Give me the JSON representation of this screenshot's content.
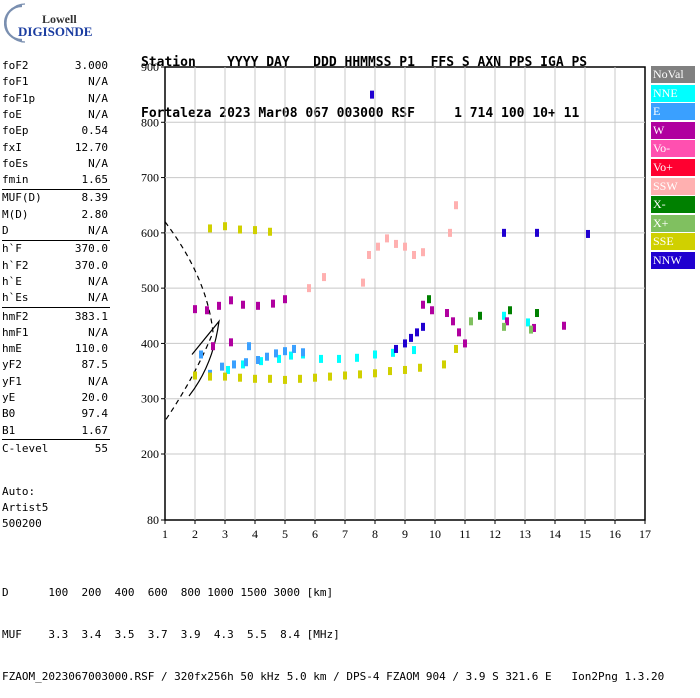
{
  "logo": {
    "brand_top": "Lowell",
    "brand_bottom": "DIGISONDE"
  },
  "header": {
    "line1": "Station    YYYY DAY   DDD HHMMSS P1  FFS S AXN PPS IGA PS",
    "line2": "Fortaleza 2023 Mar08 067 003000 RSF     1 714 100 10+ 11"
  },
  "params": [
    {
      "name": "foF2",
      "value": "3.000"
    },
    {
      "name": "foF1",
      "value": "N/A"
    },
    {
      "name": "foF1p",
      "value": "N/A"
    },
    {
      "name": "foE",
      "value": "N/A"
    },
    {
      "name": "foEp",
      "value": "0.54"
    },
    {
      "name": "fxI",
      "value": "12.70"
    },
    {
      "name": "foEs",
      "value": "N/A"
    },
    {
      "name": "fmin",
      "value": "1.65"
    },
    {
      "name": "MUF(D)",
      "value": "8.39"
    },
    {
      "name": "M(D)",
      "value": "2.80"
    },
    {
      "name": "D",
      "value": "N/A"
    },
    {
      "name": "h`F",
      "value": "370.0"
    },
    {
      "name": "h`F2",
      "value": "370.0"
    },
    {
      "name": "h`E",
      "value": "N/A"
    },
    {
      "name": "h`Es",
      "value": "N/A"
    },
    {
      "name": "hmF2",
      "value": "383.1"
    },
    {
      "name": "hmF1",
      "value": "N/A"
    },
    {
      "name": "hmE",
      "value": "110.0"
    },
    {
      "name": "yF2",
      "value": "87.5"
    },
    {
      "name": "yF1",
      "value": "N/A"
    },
    {
      "name": "yE",
      "value": "20.0"
    },
    {
      "name": "B0",
      "value": "97.4"
    },
    {
      "name": "B1",
      "value": "1.67"
    },
    {
      "name": "C-level",
      "value": "55"
    }
  ],
  "notes": {
    "auto": "Auto:",
    "artist": "Artist5",
    "version": "500200"
  },
  "legend": [
    {
      "label": "NoVal",
      "color": "#808080"
    },
    {
      "label": "NNE",
      "color": "#00ffff"
    },
    {
      "label": "E",
      "color": "#3aa0ff"
    },
    {
      "label": "W",
      "color": "#b0009f"
    },
    {
      "label": "Vo-",
      "color": "#ff50b0"
    },
    {
      "label": "Vo+",
      "color": "#ff0030"
    },
    {
      "label": "SSW",
      "color": "#ffb0b0"
    },
    {
      "label": "X-",
      "color": "#008000"
    },
    {
      "label": "X+",
      "color": "#80c060"
    },
    {
      "label": "SSE",
      "color": "#d0d000"
    },
    {
      "label": "NNW",
      "color": "#2000d0"
    }
  ],
  "footer": {
    "line1": "D      100  200  400  600  800 1000 1500 3000 [km]",
    "line2": "MUF    3.3  3.4  3.5  3.7  3.9  4.3  5.5  8.4 [MHz]",
    "line3": "FZAOM_2023067003000.RSF / 320fx256h 50 kHz 5.0 km / DPS-4 FZAOM 904 / 3.9 S 321.6 E   Ion2Png 1.3.20"
  },
  "chart_data": {
    "type": "scatter",
    "xlim": [
      1,
      17
    ],
    "ylim": [
      80,
      900
    ],
    "x_ticks": [
      1,
      2,
      3,
      4,
      5,
      6,
      7,
      8,
      9,
      10,
      11,
      12,
      13,
      14,
      15,
      16,
      17
    ],
    "y_ticks": [
      80,
      200,
      300,
      400,
      500,
      600,
      700,
      800,
      900
    ],
    "grid": true,
    "series": [
      {
        "name": "NNE",
        "color": "#00ffff",
        "points": [
          [
            3.1,
            352
          ],
          [
            3.6,
            362
          ],
          [
            4.2,
            368
          ],
          [
            4.8,
            372
          ],
          [
            5.2,
            378
          ],
          [
            5.6,
            380
          ],
          [
            6.2,
            372
          ],
          [
            6.8,
            372
          ],
          [
            7.4,
            374
          ],
          [
            8.0,
            380
          ],
          [
            8.6,
            383
          ],
          [
            9.3,
            388
          ],
          [
            12.3,
            450
          ],
          [
            13.1,
            438
          ]
        ]
      },
      {
        "name": "E",
        "color": "#3aa0ff",
        "points": [
          [
            2.5,
            345
          ],
          [
            2.9,
            358
          ],
          [
            3.3,
            362
          ],
          [
            3.7,
            366
          ],
          [
            4.1,
            370
          ],
          [
            4.4,
            376
          ],
          [
            4.7,
            382
          ],
          [
            5.0,
            386
          ],
          [
            5.3,
            390
          ],
          [
            5.6,
            384
          ],
          [
            2.2,
            380
          ],
          [
            3.8,
            395
          ]
        ]
      },
      {
        "name": "W",
        "color": "#b0009f",
        "points": [
          [
            2.0,
            462
          ],
          [
            2.4,
            460
          ],
          [
            2.8,
            468
          ],
          [
            3.2,
            478
          ],
          [
            3.6,
            470
          ],
          [
            4.1,
            468
          ],
          [
            4.6,
            472
          ],
          [
            5.0,
            480
          ],
          [
            2.6,
            395
          ],
          [
            3.2,
            402
          ],
          [
            10.4,
            455
          ],
          [
            10.6,
            440
          ],
          [
            10.8,
            420
          ],
          [
            11.0,
            400
          ],
          [
            9.6,
            470
          ],
          [
            9.9,
            460
          ],
          [
            12.4,
            440
          ],
          [
            13.3,
            428
          ],
          [
            14.3,
            432
          ]
        ]
      },
      {
        "name": "SSW",
        "color": "#ffb0b0",
        "points": [
          [
            7.8,
            560
          ],
          [
            8.1,
            575
          ],
          [
            8.4,
            590
          ],
          [
            8.7,
            580
          ],
          [
            9.0,
            575
          ],
          [
            9.3,
            560
          ],
          [
            9.6,
            565
          ],
          [
            10.5,
            600
          ],
          [
            10.7,
            650
          ],
          [
            6.3,
            520
          ],
          [
            5.8,
            500
          ],
          [
            7.6,
            510
          ]
        ]
      },
      {
        "name": "X-",
        "color": "#008000",
        "points": [
          [
            12.5,
            460
          ],
          [
            13.4,
            455
          ],
          [
            11.5,
            450
          ],
          [
            9.8,
            480
          ]
        ]
      },
      {
        "name": "X+",
        "color": "#80c060",
        "points": [
          [
            12.3,
            430
          ],
          [
            13.2,
            425
          ],
          [
            11.2,
            440
          ]
        ]
      },
      {
        "name": "SSE",
        "color": "#d0d000",
        "points": [
          [
            2.0,
            342
          ],
          [
            2.5,
            340
          ],
          [
            3.0,
            340
          ],
          [
            3.5,
            338
          ],
          [
            4.0,
            336
          ],
          [
            4.5,
            336
          ],
          [
            5.0,
            334
          ],
          [
            5.5,
            336
          ],
          [
            6.0,
            338
          ],
          [
            6.5,
            340
          ],
          [
            7.0,
            342
          ],
          [
            7.5,
            344
          ],
          [
            8.0,
            346
          ],
          [
            8.5,
            350
          ],
          [
            9.0,
            352
          ],
          [
            9.5,
            356
          ],
          [
            10.3,
            362
          ],
          [
            10.7,
            390
          ],
          [
            2.5,
            608
          ],
          [
            3.0,
            612
          ],
          [
            3.5,
            606
          ],
          [
            4.0,
            605
          ],
          [
            4.5,
            602
          ]
        ]
      },
      {
        "name": "NNW",
        "color": "#2000d0",
        "points": [
          [
            8.7,
            390
          ],
          [
            9.0,
            400
          ],
          [
            9.2,
            410
          ],
          [
            9.4,
            420
          ],
          [
            9.6,
            430
          ],
          [
            12.3,
            600
          ],
          [
            13.4,
            600
          ],
          [
            15.1,
            598
          ],
          [
            7.9,
            850
          ]
        ]
      }
    ]
  }
}
